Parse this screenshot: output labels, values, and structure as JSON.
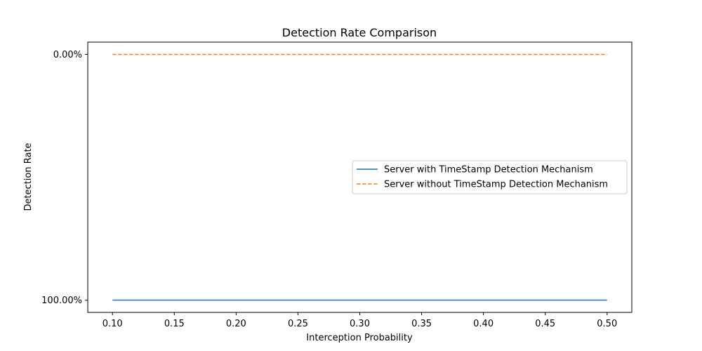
{
  "chart_data": {
    "type": "line",
    "title": "Detection Rate Comparison",
    "xlabel": "Interception Probability",
    "ylabel": "Detection Rate",
    "xlim": [
      0.08,
      0.52
    ],
    "x_ticks": [
      0.1,
      0.15,
      0.2,
      0.25,
      0.3,
      0.35,
      0.4,
      0.45,
      0.5
    ],
    "x_tick_labels": [
      "0.10",
      "0.15",
      "0.20",
      "0.25",
      "0.30",
      "0.35",
      "0.40",
      "0.45",
      "0.50"
    ],
    "y_axis_inverted": true,
    "ylim": [
      -5,
      105
    ],
    "y_ticks": [
      0,
      100
    ],
    "y_tick_labels": [
      "0.00%",
      "100.00%"
    ],
    "grid": false,
    "legend_position": "center-right",
    "x": [
      0.1,
      0.5
    ],
    "series": [
      {
        "name": "Server with TimeStamp Detection Mechanism",
        "values": [
          100,
          100
        ],
        "color": "#1f77b4",
        "line_style": "solid"
      },
      {
        "name": "Server without TimeStamp Detection Mechanism",
        "values": [
          0,
          0
        ],
        "color": "#ff7f0e",
        "line_style": "dashed"
      }
    ]
  }
}
